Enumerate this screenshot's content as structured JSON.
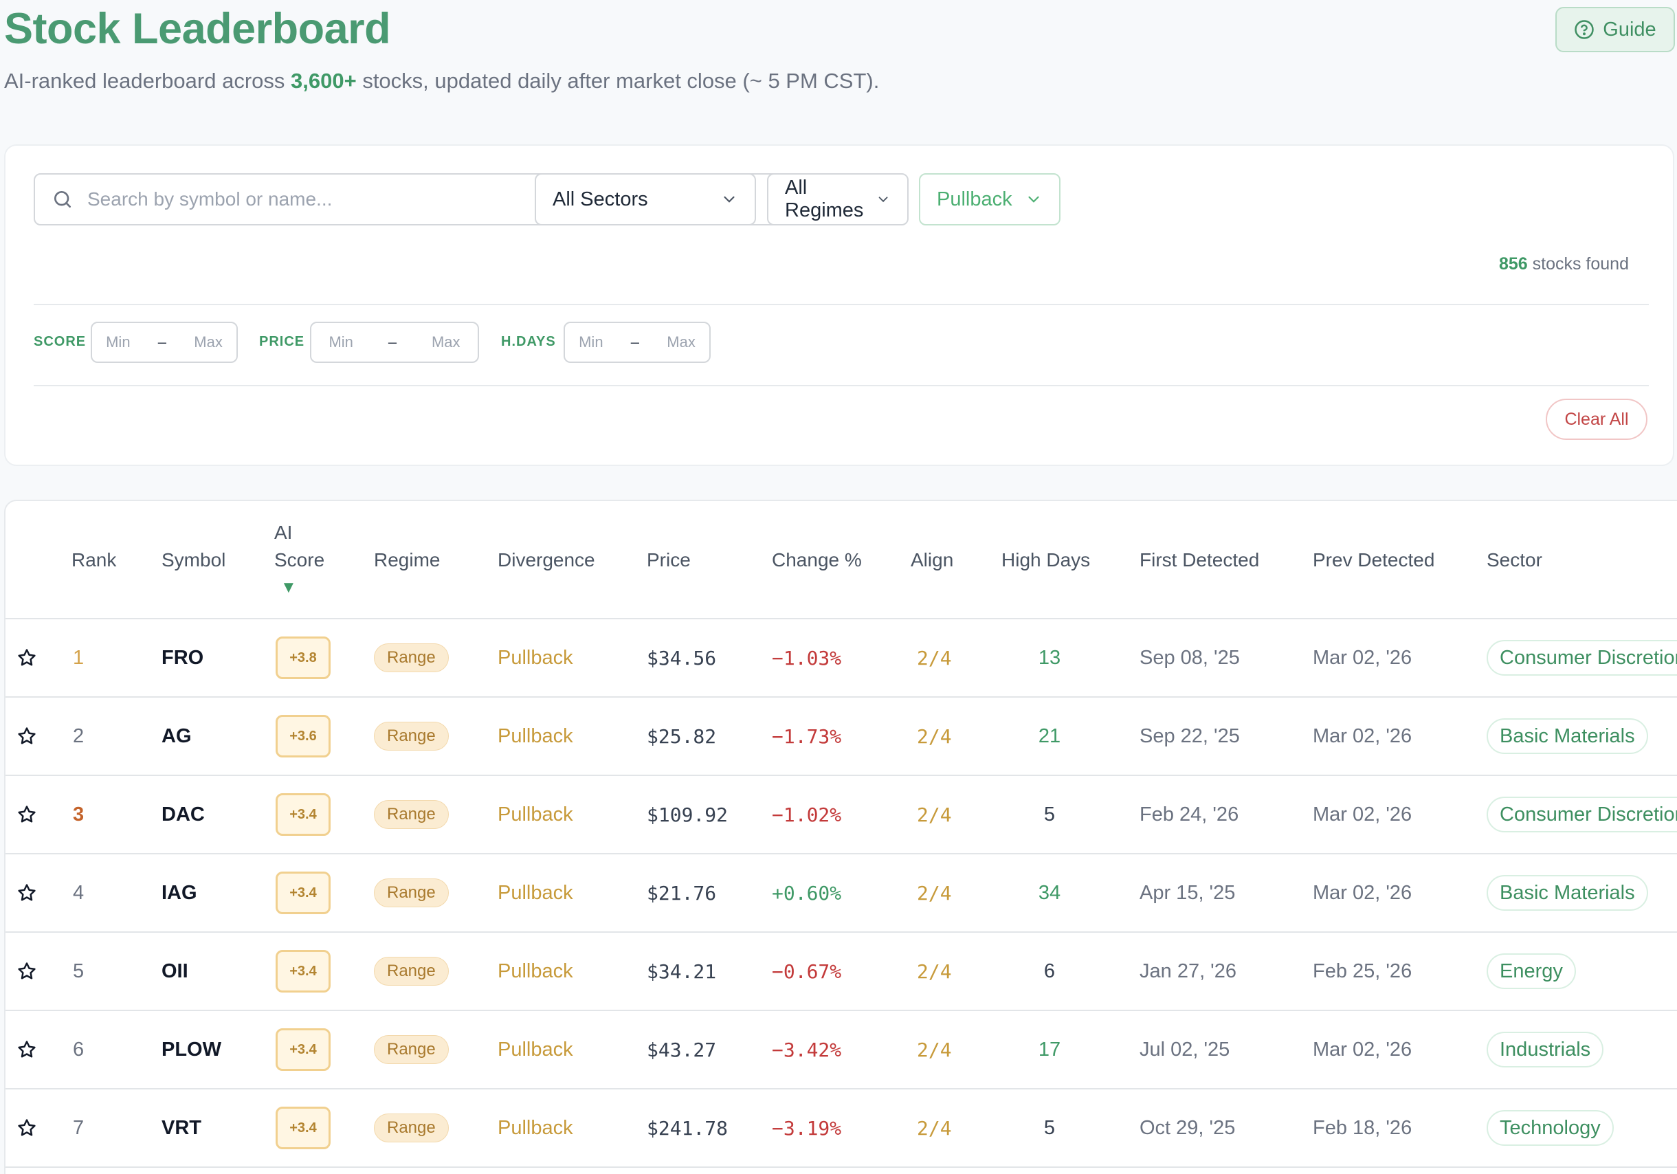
{
  "header": {
    "title": "Stock Leaderboard",
    "subtitle_pre": "AI-ranked leaderboard across ",
    "subtitle_highlight": "3,600+",
    "subtitle_post": " stocks, updated daily after market close (~ 5 PM CST).",
    "guide_label": "Guide"
  },
  "filters": {
    "search_placeholder": "Search by symbol or name...",
    "sector_value": "All Sectors",
    "regime_value": "All Regimes",
    "divergence_value": "Pullback",
    "found_count": "856",
    "found_label": " stocks found",
    "ranges": [
      {
        "label": "SCORE",
        "min_placeholder": "Min",
        "max_placeholder": "Max"
      },
      {
        "label": "PRICE",
        "min_placeholder": "Min",
        "max_placeholder": "Max"
      },
      {
        "label": "H.DAYS",
        "min_placeholder": "Min",
        "max_placeholder": "Max"
      }
    ],
    "dash": "–",
    "clear_label": "Clear All"
  },
  "table": {
    "columns": {
      "rank": "Rank",
      "symbol": "Symbol",
      "ai": "AI",
      "score": "Score",
      "sort_indicator": "▼",
      "regime": "Regime",
      "divergence": "Divergence",
      "price": "Price",
      "change": "Change %",
      "align": "Align",
      "high_days": "High Days",
      "first_detected": "First Detected",
      "prev_detected": "Prev Detected",
      "sector": "Sector"
    },
    "rows": [
      {
        "rank": "1",
        "symbol": "FRO",
        "score": "+3.8",
        "regime": "Range",
        "divergence": "Pullback",
        "price": "$34.56",
        "change": "−1.03%",
        "change_dir": "neg",
        "align": "2/4",
        "high_days": "13",
        "hd_color": "green",
        "first": "Sep 08, '25",
        "prev": "Mar 02, '26",
        "sector": "Consumer Discretionary"
      },
      {
        "rank": "2",
        "symbol": "AG",
        "score": "+3.6",
        "regime": "Range",
        "divergence": "Pullback",
        "price": "$25.82",
        "change": "−1.73%",
        "change_dir": "neg",
        "align": "2/4",
        "high_days": "21",
        "hd_color": "green",
        "first": "Sep 22, '25",
        "prev": "Mar 02, '26",
        "sector": "Basic Materials"
      },
      {
        "rank": "3",
        "symbol": "DAC",
        "score": "+3.4",
        "regime": "Range",
        "divergence": "Pullback",
        "price": "$109.92",
        "change": "−1.02%",
        "change_dir": "neg",
        "align": "2/4",
        "high_days": "5",
        "hd_color": "plain",
        "first": "Feb 24, '26",
        "prev": "Mar 02, '26",
        "sector": "Consumer Discretionary"
      },
      {
        "rank": "4",
        "symbol": "IAG",
        "score": "+3.4",
        "regime": "Range",
        "divergence": "Pullback",
        "price": "$21.76",
        "change": "+0.60%",
        "change_dir": "pos",
        "align": "2/4",
        "high_days": "34",
        "hd_color": "green",
        "first": "Apr 15, '25",
        "prev": "Mar 02, '26",
        "sector": "Basic Materials"
      },
      {
        "rank": "5",
        "symbol": "OII",
        "score": "+3.4",
        "regime": "Range",
        "divergence": "Pullback",
        "price": "$34.21",
        "change": "−0.67%",
        "change_dir": "neg",
        "align": "2/4",
        "high_days": "6",
        "hd_color": "plain",
        "first": "Jan 27, '26",
        "prev": "Feb 25, '26",
        "sector": "Energy"
      },
      {
        "rank": "6",
        "symbol": "PLOW",
        "score": "+3.4",
        "regime": "Range",
        "divergence": "Pullback",
        "price": "$43.27",
        "change": "−3.42%",
        "change_dir": "neg",
        "align": "2/4",
        "high_days": "17",
        "hd_color": "green",
        "first": "Jul 02, '25",
        "prev": "Mar 02, '26",
        "sector": "Industrials"
      },
      {
        "rank": "7",
        "symbol": "VRT",
        "score": "+3.4",
        "regime": "Range",
        "divergence": "Pullback",
        "price": "$241.78",
        "change": "−3.19%",
        "change_dir": "neg",
        "align": "2/4",
        "high_days": "5",
        "hd_color": "plain",
        "first": "Oct 29, '25",
        "prev": "Feb 18, '26",
        "sector": "Technology"
      }
    ]
  }
}
